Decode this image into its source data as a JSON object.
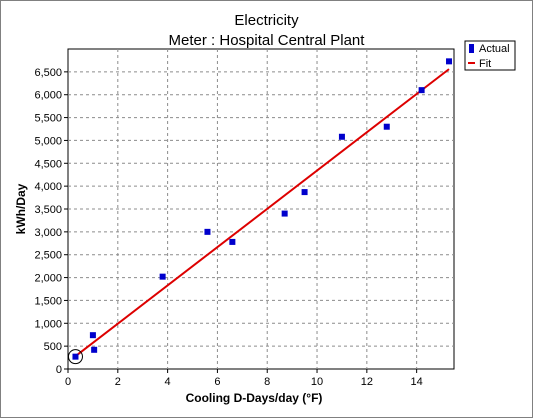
{
  "chart_data": {
    "type": "scatter",
    "title": "Electricity",
    "subtitle": "Meter : Hospital Central Plant",
    "xlabel": "Cooling D-Days/day (°F)",
    "ylabel": "kWh/Day",
    "xlim": [
      0,
      15.5
    ],
    "ylim": [
      0,
      7000
    ],
    "xticks": [
      0,
      2,
      4,
      6,
      8,
      10,
      12,
      14
    ],
    "yticks": [
      0,
      500,
      1000,
      1500,
      2000,
      2500,
      3000,
      3500,
      4000,
      4500,
      5000,
      5500,
      6000,
      6500
    ],
    "ytick_labels": [
      "0",
      "500",
      "1,000",
      "1,500",
      "2,000",
      "2,500",
      "3,000",
      "3,500",
      "4,000",
      "4,500",
      "5,000",
      "5,500",
      "6,000",
      "6,500"
    ],
    "xtick_labels": [
      "0",
      "2",
      "4",
      "6",
      "8",
      "10",
      "12",
      "14"
    ],
    "grid": true,
    "legend": {
      "placement": "top-right",
      "entries": [
        "Actual",
        "Fit"
      ]
    },
    "series": [
      {
        "name": "Actual",
        "kind": "points",
        "color": "#0000cc",
        "x": [
          0.3,
          1.0,
          1.05,
          3.8,
          5.6,
          6.6,
          8.7,
          9.5,
          11.0,
          12.8,
          14.2,
          15.3
        ],
        "y": [
          270,
          740,
          420,
          2020,
          3000,
          2780,
          3400,
          3870,
          5080,
          5300,
          6100,
          6730
        ],
        "highlighted_index": 0
      },
      {
        "name": "Fit",
        "kind": "line",
        "color": "#dd0000",
        "x": [
          0.3,
          15.3
        ],
        "y": [
          280,
          6560
        ]
      }
    ]
  }
}
